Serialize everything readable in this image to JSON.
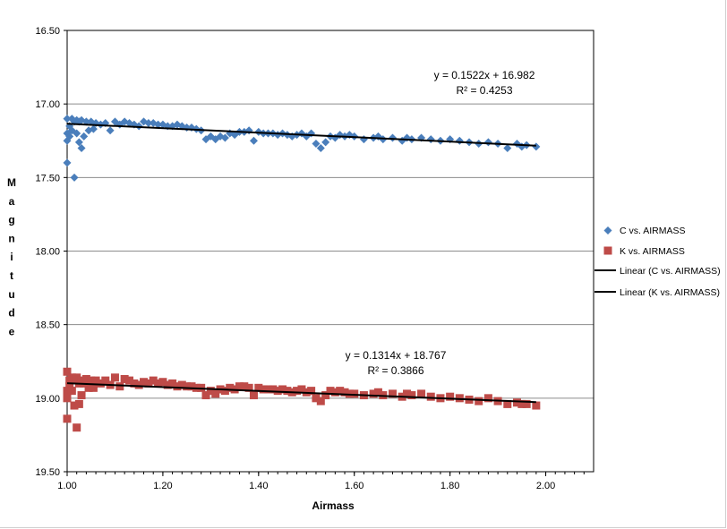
{
  "chart_data": {
    "type": "scatter",
    "xlabel": "Airmass",
    "ylabel": "Magnitude",
    "xlim": [
      1.0,
      2.1
    ],
    "ylim": [
      19.5,
      16.5
    ],
    "y_inverted": true,
    "x_ticks": [
      "1.00",
      "1.20",
      "1.40",
      "1.60",
      "1.80",
      "2.00"
    ],
    "y_ticks": [
      "16.50",
      "17.00",
      "17.50",
      "18.00",
      "18.50",
      "19.00",
      "19.50"
    ],
    "horizontal_grid": true,
    "legend_position": "right",
    "series": [
      {
        "name": "C vs. AIRMASS",
        "marker": "diamond",
        "color": "#4a7ebb",
        "x": [
          1.0,
          1.0,
          1.0,
          1.0,
          1.005,
          1.005,
          1.01,
          1.01,
          1.015,
          1.015,
          1.02,
          1.02,
          1.025,
          1.025,
          1.03,
          1.03,
          1.035,
          1.04,
          1.045,
          1.05,
          1.055,
          1.06,
          1.07,
          1.08,
          1.09,
          1.1,
          1.11,
          1.12,
          1.13,
          1.14,
          1.15,
          1.16,
          1.17,
          1.18,
          1.19,
          1.2,
          1.21,
          1.22,
          1.23,
          1.24,
          1.25,
          1.26,
          1.27,
          1.28,
          1.29,
          1.3,
          1.31,
          1.32,
          1.33,
          1.34,
          1.35,
          1.36,
          1.37,
          1.38,
          1.39,
          1.4,
          1.41,
          1.42,
          1.43,
          1.44,
          1.45,
          1.46,
          1.47,
          1.48,
          1.49,
          1.5,
          1.51,
          1.52,
          1.53,
          1.54,
          1.55,
          1.56,
          1.57,
          1.58,
          1.59,
          1.6,
          1.62,
          1.64,
          1.65,
          1.66,
          1.68,
          1.7,
          1.71,
          1.72,
          1.74,
          1.76,
          1.78,
          1.8,
          1.82,
          1.84,
          1.86,
          1.88,
          1.9,
          1.92,
          1.94,
          1.95,
          1.96,
          1.98
        ],
        "y": [
          17.1,
          17.25,
          17.4,
          17.2,
          17.15,
          17.22,
          17.1,
          17.18,
          17.12,
          17.5,
          17.11,
          17.2,
          17.12,
          17.26,
          17.11,
          17.3,
          17.22,
          17.12,
          17.18,
          17.12,
          17.17,
          17.13,
          17.14,
          17.13,
          17.18,
          17.12,
          17.14,
          17.12,
          17.13,
          17.14,
          17.15,
          17.12,
          17.13,
          17.13,
          17.14,
          17.14,
          17.15,
          17.15,
          17.14,
          17.15,
          17.16,
          17.16,
          17.17,
          17.18,
          17.24,
          17.22,
          17.24,
          17.22,
          17.23,
          17.2,
          17.21,
          17.19,
          17.19,
          17.18,
          17.25,
          17.19,
          17.2,
          17.2,
          17.2,
          17.21,
          17.2,
          17.21,
          17.22,
          17.21,
          17.2,
          17.22,
          17.2,
          17.27,
          17.3,
          17.26,
          17.22,
          17.23,
          17.21,
          17.22,
          17.21,
          17.22,
          17.24,
          17.23,
          17.22,
          17.24,
          17.23,
          17.25,
          17.23,
          17.24,
          17.23,
          17.24,
          17.25,
          17.24,
          17.25,
          17.26,
          17.27,
          17.26,
          17.27,
          17.3,
          17.27,
          17.29,
          17.28,
          17.29
        ]
      },
      {
        "name": "K vs. AIRMASS",
        "marker": "square",
        "color": "#be4b48",
        "x": [
          1.0,
          1.0,
          1.0,
          1.0,
          1.005,
          1.005,
          1.01,
          1.01,
          1.015,
          1.015,
          1.02,
          1.02,
          1.025,
          1.025,
          1.03,
          1.03,
          1.035,
          1.04,
          1.045,
          1.05,
          1.055,
          1.06,
          1.07,
          1.08,
          1.09,
          1.1,
          1.11,
          1.12,
          1.13,
          1.14,
          1.15,
          1.16,
          1.17,
          1.18,
          1.19,
          1.2,
          1.21,
          1.22,
          1.23,
          1.24,
          1.25,
          1.26,
          1.27,
          1.28,
          1.29,
          1.3,
          1.31,
          1.32,
          1.33,
          1.34,
          1.35,
          1.36,
          1.37,
          1.38,
          1.39,
          1.4,
          1.41,
          1.42,
          1.43,
          1.44,
          1.45,
          1.46,
          1.47,
          1.48,
          1.49,
          1.5,
          1.51,
          1.52,
          1.53,
          1.54,
          1.55,
          1.56,
          1.57,
          1.58,
          1.59,
          1.6,
          1.62,
          1.64,
          1.65,
          1.66,
          1.68,
          1.7,
          1.71,
          1.72,
          1.74,
          1.76,
          1.78,
          1.8,
          1.82,
          1.84,
          1.86,
          1.88,
          1.9,
          1.92,
          1.94,
          1.95,
          1.96,
          1.98
        ],
        "y": [
          18.82,
          18.95,
          19.14,
          19.0,
          18.88,
          18.92,
          18.86,
          18.95,
          18.87,
          19.05,
          18.86,
          19.2,
          18.9,
          19.04,
          18.88,
          18.98,
          18.9,
          18.87,
          18.93,
          18.88,
          18.93,
          18.88,
          18.9,
          18.88,
          18.91,
          18.86,
          18.92,
          18.87,
          18.88,
          18.9,
          18.91,
          18.89,
          18.9,
          18.88,
          18.9,
          18.89,
          18.91,
          18.9,
          18.92,
          18.91,
          18.92,
          18.92,
          18.93,
          18.93,
          18.98,
          18.95,
          18.97,
          18.94,
          18.95,
          18.93,
          18.94,
          18.92,
          18.92,
          18.93,
          18.98,
          18.93,
          18.94,
          18.94,
          18.94,
          18.95,
          18.94,
          18.95,
          18.96,
          18.95,
          18.94,
          18.96,
          18.95,
          19.0,
          19.02,
          18.98,
          18.95,
          18.96,
          18.95,
          18.96,
          18.97,
          18.97,
          18.98,
          18.97,
          18.96,
          18.98,
          18.97,
          18.99,
          18.97,
          18.98,
          18.97,
          18.99,
          19.0,
          18.99,
          19.0,
          19.01,
          19.02,
          19.0,
          19.02,
          19.04,
          19.03,
          19.04,
          19.04,
          19.05
        ]
      }
    ],
    "trendlines": [
      {
        "name": "Linear (C vs. AIRMASS)",
        "slope": 0.1522,
        "intercept": 16.982,
        "x_range": [
          1.0,
          1.98
        ],
        "equation": "y = 0.1522x + 16.982",
        "r2": "R² = 0.4253"
      },
      {
        "name": "Linear (K vs. AIRMASS)",
        "slope": 0.1314,
        "intercept": 18.767,
        "x_range": [
          1.0,
          1.98
        ],
        "equation": "y = 0.1314x + 18.767",
        "r2": "R² = 0.3866"
      }
    ]
  }
}
